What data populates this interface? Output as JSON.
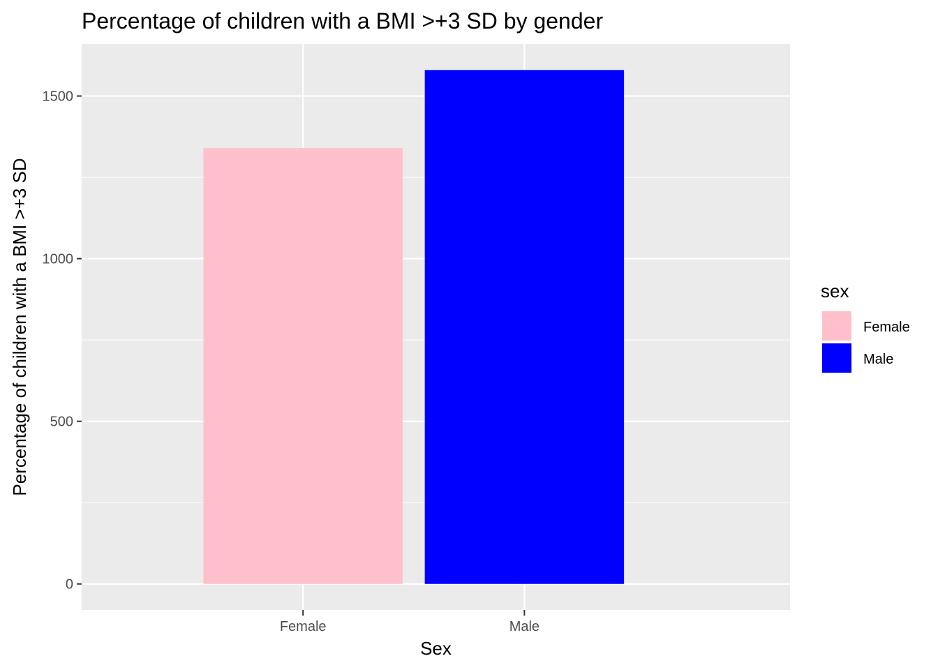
{
  "chart_data": {
    "type": "bar",
    "title": "Percentage of children with a BMI >+3 SD by gender",
    "xlabel": "Sex",
    "ylabel": "Percentage of children with a BMI >+3 SD",
    "categories": [
      "Female",
      "Male"
    ],
    "values": [
      1340,
      1580
    ],
    "colors": [
      "#FFC0CB",
      "#0000FF"
    ],
    "ylim": [
      -80,
      1660
    ],
    "y_ticks": [
      0,
      500,
      1000,
      1500
    ],
    "y_minor_ticks": [
      250,
      750,
      1250
    ],
    "grid": true,
    "panel_background": "#EBEBEB",
    "legend": {
      "title": "sex",
      "position": "right",
      "items": [
        {
          "label": "Female",
          "color": "#FFC0CB"
        },
        {
          "label": "Male",
          "color": "#0000FF"
        }
      ]
    }
  }
}
